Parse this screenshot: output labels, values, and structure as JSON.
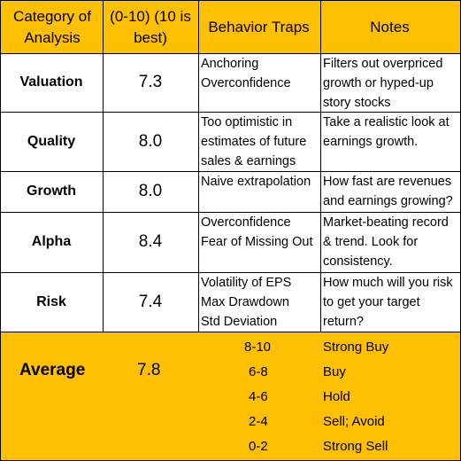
{
  "header": {
    "col1": "Category of Analysis",
    "col2": "(0-10) (10 is best)",
    "col3": "Behavior Traps",
    "col4": "Notes"
  },
  "rows": [
    {
      "category": "Valuation",
      "score": "7.3",
      "traps": [
        "Anchoring",
        "Overconfidence"
      ],
      "notes": [
        "Filters out overpriced",
        "growth or hyped-up",
        "story stocks"
      ]
    },
    {
      "category": "Quality",
      "score": "8.0",
      "traps": [
        "Too optimistic in",
        "estimates of future",
        "sales & earnings"
      ],
      "notes": [
        "Take a realistic look at",
        "earnings growth."
      ]
    },
    {
      "category": "Growth",
      "score": "8.0",
      "traps": [
        "Naive extrapolation"
      ],
      "notes": [
        "How fast are revenues",
        "and earnings growing?"
      ]
    },
    {
      "category": "Alpha",
      "score": "8.4",
      "traps": [
        "Overconfidence",
        "Fear of Missing Out"
      ],
      "notes": [
        "Market-beating record",
        "& trend. Look for",
        "consistency."
      ]
    },
    {
      "category": "Risk",
      "score": "7.4",
      "traps": [
        "Volatility of EPS",
        "Max Drawdown",
        "Std Deviation"
      ],
      "notes": [
        "How much will you risk",
        "to get your target",
        "return?"
      ]
    }
  ],
  "footer": {
    "category": "Average",
    "score": "7.8",
    "scale": [
      {
        "range": "8-10",
        "label": "Strong Buy"
      },
      {
        "range": "6-8",
        "label": "Buy"
      },
      {
        "range": "4-6",
        "label": "Hold"
      },
      {
        "range": "2-4",
        "label": "Sell; Avoid"
      },
      {
        "range": "0-2",
        "label": "Strong Sell"
      }
    ]
  },
  "colors": {
    "header_bg": "#FFC000",
    "footer_bg": "#FFC000",
    "border": "#000000"
  }
}
